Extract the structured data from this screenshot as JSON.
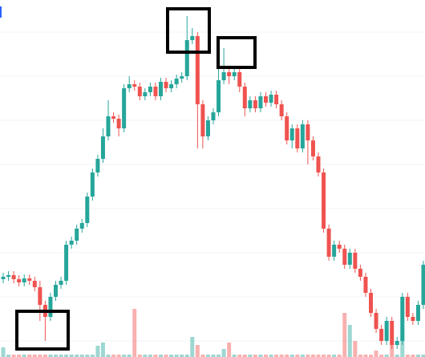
{
  "chart_data": {
    "type": "candlestick",
    "open": [
      97,
      100,
      102,
      97,
      93,
      98,
      95,
      87,
      65,
      50,
      75,
      90,
      95,
      140,
      145,
      160,
      167,
      200,
      230,
      247,
      275,
      300,
      297,
      285,
      335,
      340,
      337,
      325,
      330,
      337,
      325,
      343,
      335,
      340,
      347,
      350,
      395,
      400,
      315,
      275,
      295,
      305,
      345,
      355,
      350,
      355,
      337,
      310,
      320,
      310,
      325,
      317,
      327,
      315,
      300,
      270,
      285,
      260,
      290,
      270,
      250,
      230,
      160,
      125,
      140,
      135,
      115,
      130,
      110,
      100,
      80,
      55,
      35,
      20,
      45,
      15,
      20,
      75,
      50,
      45,
      65
    ],
    "high": [
      105,
      107,
      107,
      102,
      103,
      103,
      100,
      95,
      70,
      80,
      95,
      100,
      145,
      150,
      165,
      172,
      205,
      235,
      252,
      285,
      320,
      305,
      302,
      340,
      350,
      345,
      342,
      335,
      342,
      342,
      348,
      348,
      345,
      352,
      355,
      425,
      410,
      405,
      320,
      300,
      310,
      360,
      385,
      360,
      360,
      360,
      342,
      325,
      325,
      330,
      330,
      332,
      332,
      320,
      305,
      290,
      290,
      295,
      295,
      275,
      255,
      235,
      165,
      145,
      145,
      140,
      135,
      135,
      115,
      105,
      85,
      60,
      40,
      50,
      50,
      25,
      80,
      80,
      55,
      70,
      120
    ],
    "low": [
      92,
      95,
      92,
      88,
      88,
      90,
      82,
      45,
      20,
      45,
      70,
      85,
      90,
      135,
      140,
      155,
      162,
      195,
      225,
      242,
      270,
      292,
      275,
      280,
      330,
      332,
      320,
      320,
      325,
      320,
      320,
      330,
      330,
      335,
      342,
      345,
      390,
      260,
      260,
      270,
      290,
      300,
      340,
      340,
      345,
      330,
      300,
      305,
      305,
      305,
      312,
      312,
      310,
      295,
      265,
      260,
      255,
      255,
      240,
      245,
      225,
      155,
      120,
      120,
      130,
      110,
      110,
      105,
      95,
      75,
      50,
      30,
      15,
      15,
      10,
      10,
      15,
      45,
      40,
      40,
      60
    ],
    "close": [
      100,
      102,
      97,
      93,
      98,
      95,
      87,
      65,
      50,
      75,
      90,
      95,
      140,
      145,
      160,
      167,
      200,
      230,
      247,
      275,
      300,
      297,
      285,
      335,
      340,
      337,
      325,
      330,
      337,
      325,
      343,
      335,
      340,
      347,
      350,
      395,
      400,
      315,
      275,
      295,
      305,
      345,
      355,
      350,
      355,
      337,
      310,
      320,
      310,
      325,
      317,
      327,
      315,
      300,
      270,
      285,
      260,
      290,
      270,
      250,
      230,
      160,
      125,
      140,
      135,
      115,
      130,
      110,
      100,
      80,
      55,
      35,
      20,
      45,
      15,
      20,
      75,
      50,
      45,
      65,
      115
    ],
    "volume": [
      12,
      3,
      3,
      3,
      3,
      3,
      3,
      3,
      3,
      3,
      3,
      3,
      3,
      3,
      3,
      3,
      3,
      3,
      14,
      18,
      3,
      3,
      3,
      3,
      3,
      60,
      3,
      3,
      3,
      3,
      3,
      3,
      3,
      3,
      3,
      3,
      25,
      15,
      3,
      3,
      3,
      3,
      10,
      18,
      3,
      3,
      3,
      3,
      3,
      3,
      3,
      3,
      3,
      3,
      3,
      3,
      3,
      3,
      3,
      3,
      3,
      3,
      3,
      3,
      3,
      55,
      40,
      20,
      3,
      3,
      3,
      8,
      3,
      3,
      18,
      3,
      35,
      3,
      3,
      3,
      3
    ],
    "up_color": "#26a69a",
    "down_color": "#ef5350",
    "ylim": [
      0,
      445
    ],
    "volume_ylim": [
      0,
      445
    ],
    "yticks": [
      20,
      75,
      130,
      185,
      240,
      295,
      350,
      405
    ],
    "grid": true
  }
}
